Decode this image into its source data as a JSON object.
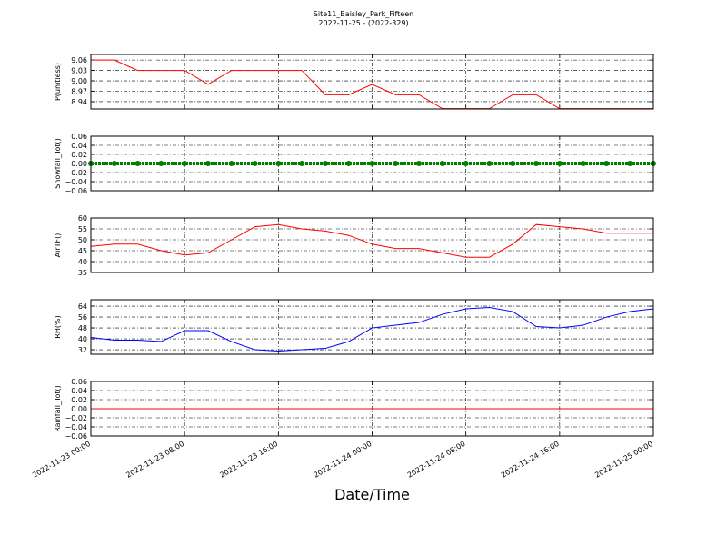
{
  "chart_data": [
    {
      "type": "line",
      "title": "Site11_Baisley_Park_Fifteen",
      "subtitle": "2022-11-25 - (2022-329)",
      "ylabel": "P(unitless)",
      "x": [
        "2022-11-23 00:00",
        "2022-11-23 02:00",
        "2022-11-23 04:00",
        "2022-11-23 06:00",
        "2022-11-23 08:00",
        "2022-11-23 10:00",
        "2022-11-23 12:00",
        "2022-11-23 14:00",
        "2022-11-23 16:00",
        "2022-11-23 18:00",
        "2022-11-23 20:00",
        "2022-11-23 22:00",
        "2022-11-24 00:00",
        "2022-11-24 02:00",
        "2022-11-24 04:00",
        "2022-11-24 06:00",
        "2022-11-24 08:00",
        "2022-11-24 10:00",
        "2022-11-24 12:00",
        "2022-11-24 14:00",
        "2022-11-24 16:00",
        "2022-11-24 18:00",
        "2022-11-24 20:00",
        "2022-11-24 22:00",
        "2022-11-25 00:00"
      ],
      "xlim": [
        "2022-11-23 00:00",
        "2022-11-25 00:00"
      ],
      "xticks": [
        "2022-11-23 00:00",
        "2022-11-23 08:00",
        "2022-11-23 16:00",
        "2022-11-24 00:00",
        "2022-11-24 08:00",
        "2022-11-24 16:00",
        "2022-11-25 00:00"
      ],
      "ylim": [
        8.919,
        9.076
      ],
      "yticks": [
        8.94,
        {
          "value": 8.97,
          "label": "8.97"
        },
        {
          "value": 9.0,
          "label": "9.00"
        },
        9.03,
        9.06
      ],
      "grid": true,
      "series": [
        {
          "color": "#ff0000",
          "values": [
            9.06,
            9.06,
            9.03,
            9.03,
            9.03,
            8.99,
            9.03,
            9.03,
            9.03,
            9.03,
            8.96,
            8.96,
            8.99,
            8.96,
            8.96,
            8.92,
            8.92,
            8.92,
            8.96,
            8.96,
            8.92,
            8.92,
            8.92,
            8.92,
            8.92
          ]
        }
      ]
    },
    {
      "type": "line",
      "ylabel": "Snowfall_Tot()",
      "x": [
        "2022-11-23 00:00",
        "2022-11-23 02:00",
        "2022-11-23 04:00",
        "2022-11-23 06:00",
        "2022-11-23 08:00",
        "2022-11-23 10:00",
        "2022-11-23 12:00",
        "2022-11-23 14:00",
        "2022-11-23 16:00",
        "2022-11-23 18:00",
        "2022-11-23 20:00",
        "2022-11-23 22:00",
        "2022-11-24 00:00",
        "2022-11-24 02:00",
        "2022-11-24 04:00",
        "2022-11-24 06:00",
        "2022-11-24 08:00",
        "2022-11-24 10:00",
        "2022-11-24 12:00",
        "2022-11-24 14:00",
        "2022-11-24 16:00",
        "2022-11-24 18:00",
        "2022-11-24 20:00",
        "2022-11-24 22:00",
        "2022-11-25 00:00"
      ],
      "xlim": [
        "2022-11-23 00:00",
        "2022-11-25 00:00"
      ],
      "xticks": [
        "2022-11-23 00:00",
        "2022-11-23 08:00",
        "2022-11-23 16:00",
        "2022-11-24 00:00",
        "2022-11-24 08:00",
        "2022-11-24 16:00",
        "2022-11-25 00:00"
      ],
      "ylim": [
        -0.06,
        0.06
      ],
      "yticks": [
        {
          "value": -0.06,
          "label": "−0.06"
        },
        {
          "value": -0.04,
          "label": "−0.04"
        },
        {
          "value": -0.02,
          "label": "−0.02"
        },
        {
          "value": 0,
          "label": "0.00"
        },
        {
          "value": 0.02,
          "label": "0.02"
        },
        {
          "value": 0.04,
          "label": "0.04"
        },
        {
          "value": 0.06,
          "label": "0.06"
        }
      ],
      "grid": true,
      "series": [
        {
          "color": "#008000",
          "marker": "o",
          "values": [
            0,
            0,
            0,
            0,
            0,
            0,
            0,
            0,
            0,
            0,
            0,
            0,
            0,
            0,
            0,
            0,
            0,
            0,
            0,
            0,
            0,
            0,
            0,
            0,
            0
          ]
        }
      ]
    },
    {
      "type": "line",
      "ylabel": "AirTF()",
      "x": [
        "2022-11-23 00:00",
        "2022-11-23 02:00",
        "2022-11-23 04:00",
        "2022-11-23 06:00",
        "2022-11-23 08:00",
        "2022-11-23 10:00",
        "2022-11-23 12:00",
        "2022-11-23 14:00",
        "2022-11-23 16:00",
        "2022-11-23 18:00",
        "2022-11-23 20:00",
        "2022-11-23 22:00",
        "2022-11-24 00:00",
        "2022-11-24 02:00",
        "2022-11-24 04:00",
        "2022-11-24 06:00",
        "2022-11-24 08:00",
        "2022-11-24 10:00",
        "2022-11-24 12:00",
        "2022-11-24 14:00",
        "2022-11-24 16:00",
        "2022-11-24 18:00",
        "2022-11-24 20:00",
        "2022-11-24 22:00",
        "2022-11-25 00:00"
      ],
      "xlim": [
        "2022-11-23 00:00",
        "2022-11-25 00:00"
      ],
      "xticks": [
        "2022-11-23 00:00",
        "2022-11-23 08:00",
        "2022-11-23 16:00",
        "2022-11-24 00:00",
        "2022-11-24 08:00",
        "2022-11-24 16:00",
        "2022-11-25 00:00"
      ],
      "ylim": [
        35,
        60
      ],
      "yticks": [
        35,
        40,
        45,
        50,
        55,
        60
      ],
      "grid": true,
      "series": [
        {
          "color": "#ff0000",
          "values": [
            47,
            48,
            48,
            45,
            43,
            44,
            50,
            56,
            57,
            55,
            54,
            52,
            48,
            46,
            46,
            44,
            42,
            42,
            48,
            57,
            56,
            55,
            53,
            53,
            53
          ]
        }
      ]
    },
    {
      "type": "line",
      "ylabel": "RH(%)",
      "x": [
        "2022-11-23 00:00",
        "2022-11-23 02:00",
        "2022-11-23 04:00",
        "2022-11-23 06:00",
        "2022-11-23 08:00",
        "2022-11-23 10:00",
        "2022-11-23 12:00",
        "2022-11-23 14:00",
        "2022-11-23 16:00",
        "2022-11-23 18:00",
        "2022-11-23 20:00",
        "2022-11-23 22:00",
        "2022-11-24 00:00",
        "2022-11-24 02:00",
        "2022-11-24 04:00",
        "2022-11-24 06:00",
        "2022-11-24 08:00",
        "2022-11-24 10:00",
        "2022-11-24 12:00",
        "2022-11-24 14:00",
        "2022-11-24 16:00",
        "2022-11-24 18:00",
        "2022-11-24 20:00",
        "2022-11-24 22:00",
        "2022-11-25 00:00"
      ],
      "xlim": [
        "2022-11-23 00:00",
        "2022-11-25 00:00"
      ],
      "xticks": [
        "2022-11-23 00:00",
        "2022-11-23 08:00",
        "2022-11-23 16:00",
        "2022-11-24 00:00",
        "2022-11-24 08:00",
        "2022-11-24 16:00",
        "2022-11-25 00:00"
      ],
      "ylim": [
        28.7,
        68.7
      ],
      "yticks": [
        32,
        40,
        48,
        56,
        64
      ],
      "grid": true,
      "series": [
        {
          "color": "#0000ff",
          "values": [
            41,
            39,
            39,
            38,
            46,
            46,
            38,
            32,
            31,
            32,
            33,
            38,
            48,
            50,
            52,
            58,
            62,
            63,
            60,
            49,
            48,
            50,
            56,
            60,
            62
          ]
        }
      ]
    },
    {
      "type": "line",
      "ylabel": "Rainfall_Tot()",
      "xlabel": "Date/Time",
      "show_xtick_labels": true,
      "x": [
        "2022-11-23 00:00",
        "2022-11-23 02:00",
        "2022-11-23 04:00",
        "2022-11-23 06:00",
        "2022-11-23 08:00",
        "2022-11-23 10:00",
        "2022-11-23 12:00",
        "2022-11-23 14:00",
        "2022-11-23 16:00",
        "2022-11-23 18:00",
        "2022-11-23 20:00",
        "2022-11-23 22:00",
        "2022-11-24 00:00",
        "2022-11-24 02:00",
        "2022-11-24 04:00",
        "2022-11-24 06:00",
        "2022-11-24 08:00",
        "2022-11-24 10:00",
        "2022-11-24 12:00",
        "2022-11-24 14:00",
        "2022-11-24 16:00",
        "2022-11-24 18:00",
        "2022-11-24 20:00",
        "2022-11-24 22:00",
        "2022-11-25 00:00"
      ],
      "xlim": [
        "2022-11-23 00:00",
        "2022-11-25 00:00"
      ],
      "xticks": [
        "2022-11-23 00:00",
        "2022-11-23 08:00",
        "2022-11-23 16:00",
        "2022-11-24 00:00",
        "2022-11-24 08:00",
        "2022-11-24 16:00",
        "2022-11-25 00:00"
      ],
      "ylim": [
        -0.06,
        0.06
      ],
      "yticks": [
        {
          "value": -0.06,
          "label": "−0.06"
        },
        {
          "value": -0.04,
          "label": "−0.04"
        },
        {
          "value": -0.02,
          "label": "−0.02"
        },
        {
          "value": 0,
          "label": "0.00"
        },
        {
          "value": 0.02,
          "label": "0.02"
        },
        {
          "value": 0.04,
          "label": "0.04"
        },
        {
          "value": 0.06,
          "label": "0.06"
        }
      ],
      "grid": true,
      "series": [
        {
          "color": "#ff0000",
          "values": [
            0,
            0,
            0,
            0,
            0,
            0,
            0,
            0,
            0,
            0,
            0,
            0,
            0,
            0,
            0,
            0,
            0,
            0,
            0,
            0,
            0,
            0,
            0,
            0,
            0
          ]
        }
      ]
    }
  ]
}
